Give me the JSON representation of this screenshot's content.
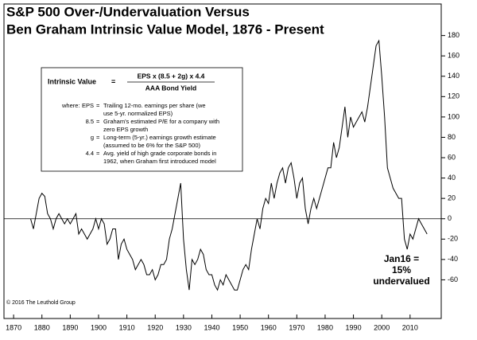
{
  "chart_data": {
    "type": "line",
    "title": [
      "S&P 500 Over-/Undervaluation Versus",
      "Ben Graham Intrinsic Value Model, 1876 - Present"
    ],
    "formula": {
      "lhs": "Intrinsic Value",
      "equals": "=",
      "numerator": "EPS x (8.5 + 2g) x 4.4",
      "denominator": "AAA Bond Yield",
      "where": "where:",
      "definitions": [
        {
          "key": "EPS",
          "text": [
            "Trailing 12-mo. earnings per share (we",
            "use 5-yr. normalized EPS)"
          ]
        },
        {
          "key": "8.5",
          "text": [
            "Graham's estimated P/E for a company with",
            "zero EPS growth"
          ]
        },
        {
          "key": "g",
          "text": [
            "Long-term (5-yr.) earnings growth estimate",
            "(assumed to be 6% for the S&P 500)"
          ]
        },
        {
          "key": "4.4",
          "text": [
            "Avg. yield of high grade corporate bonds in",
            "1962, when Graham first introduced model"
          ]
        }
      ]
    },
    "annotation": [
      "Jan16 =",
      "15%",
      "undervalued"
    ],
    "copyright": "© 2016 The Leuthold Group",
    "x": [
      1876,
      1877,
      1878,
      1879,
      1880,
      1881,
      1882,
      1883,
      1884,
      1885,
      1886,
      1887,
      1888,
      1889,
      1890,
      1891,
      1892,
      1893,
      1894,
      1895,
      1896,
      1897,
      1898,
      1899,
      1900,
      1901,
      1902,
      1903,
      1904,
      1905,
      1906,
      1907,
      1908,
      1909,
      1910,
      1911,
      1912,
      1913,
      1914,
      1915,
      1916,
      1917,
      1918,
      1919,
      1920,
      1921,
      1922,
      1923,
      1924,
      1925,
      1926,
      1927,
      1928,
      1929,
      1930,
      1931,
      1932,
      1933,
      1934,
      1935,
      1936,
      1937,
      1938,
      1939,
      1940,
      1941,
      1942,
      1943,
      1944,
      1945,
      1946,
      1947,
      1948,
      1949,
      1950,
      1951,
      1952,
      1953,
      1954,
      1955,
      1956,
      1957,
      1958,
      1959,
      1960,
      1961,
      1962,
      1963,
      1964,
      1965,
      1966,
      1967,
      1968,
      1969,
      1970,
      1971,
      1972,
      1973,
      1974,
      1975,
      1976,
      1977,
      1978,
      1979,
      1980,
      1981,
      1982,
      1983,
      1984,
      1985,
      1986,
      1987,
      1988,
      1989,
      1990,
      1991,
      1992,
      1993,
      1994,
      1995,
      1996,
      1997,
      1998,
      1999,
      2000,
      2001,
      2002,
      2003,
      2004,
      2005,
      2006,
      2007,
      2008,
      2009,
      2010,
      2011,
      2012,
      2013,
      2014,
      2015,
      2016
    ],
    "series": [
      {
        "name": "Over-/Undervaluation",
        "color": "#000000",
        "values": [
          0,
          -10,
          5,
          20,
          25,
          22,
          5,
          0,
          -10,
          0,
          5,
          0,
          -5,
          0,
          -5,
          0,
          5,
          -15,
          -10,
          -15,
          -20,
          -15,
          -10,
          0,
          -10,
          0,
          -5,
          -25,
          -20,
          -10,
          -10,
          -40,
          -25,
          -20,
          -30,
          -35,
          -40,
          -50,
          -45,
          -40,
          -45,
          -55,
          -55,
          -50,
          -60,
          -55,
          -45,
          -45,
          -40,
          -20,
          -10,
          5,
          20,
          35,
          -20,
          -50,
          -70,
          -40,
          -45,
          -40,
          -30,
          -35,
          -50,
          -55,
          -55,
          -65,
          -70,
          -60,
          -65,
          -55,
          -60,
          -65,
          -70,
          -70,
          -60,
          -50,
          -45,
          -50,
          -30,
          -15,
          0,
          -10,
          10,
          20,
          15,
          35,
          20,
          35,
          45,
          50,
          35,
          50,
          55,
          40,
          20,
          35,
          40,
          10,
          -5,
          10,
          20,
          10,
          20,
          30,
          40,
          50,
          50,
          75,
          60,
          70,
          90,
          110,
          80,
          100,
          90,
          95,
          100,
          105,
          95,
          110,
          130,
          150,
          170,
          175,
          140,
          100,
          50,
          40,
          30,
          25,
          20,
          20,
          -20,
          -30,
          -15,
          -20,
          -10,
          0,
          -5,
          -10,
          -15
        ]
      }
    ],
    "xlim": [
      1866.6,
      2021
    ],
    "xticks": [
      1870,
      1880,
      1890,
      1900,
      1910,
      1920,
      1930,
      1940,
      1950,
      1960,
      1970,
      1980,
      1990,
      2000,
      2010
    ],
    "ylim": [
      -98,
      211
    ],
    "yticks": [
      -60,
      -40,
      -20,
      0,
      20,
      40,
      60,
      80,
      100,
      120,
      140,
      160,
      180
    ]
  }
}
